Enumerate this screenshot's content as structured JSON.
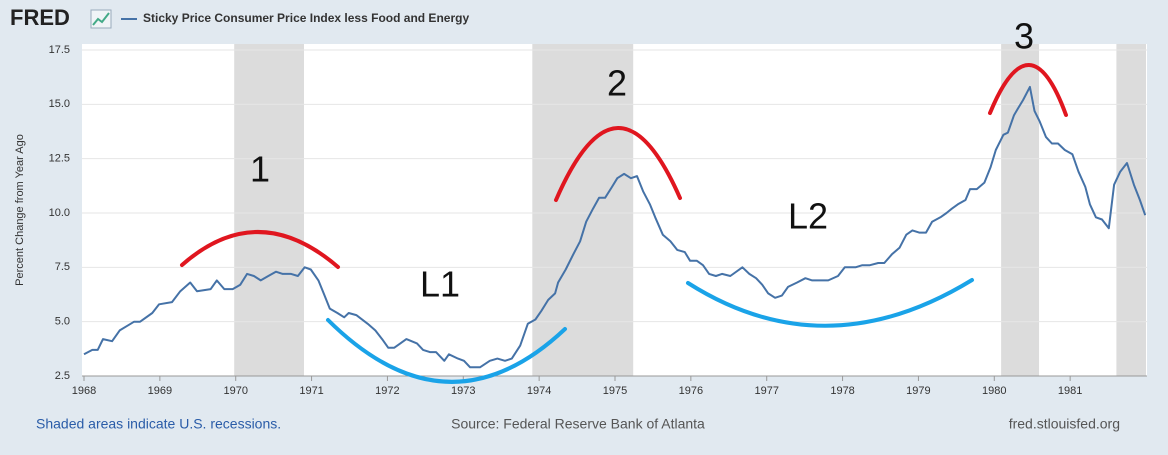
{
  "chart_data": {
    "type": "line",
    "logo": "FRED",
    "title": "Sticky Price Consumer Price Index less Food and Energy",
    "y_label": "Percent Change from Year Ago",
    "recession_note": "Shaded areas indicate U.S. recessions.",
    "source": "Source: Federal Reserve Bank of Atlanta",
    "site": "fred.stlouisfed.org",
    "annotations": [
      "1",
      "2",
      "3",
      "L1",
      "L2"
    ],
    "xlim": [
      1968,
      1982
    ],
    "xticks": [
      1968,
      1969,
      1970,
      1971,
      1972,
      1973,
      1974,
      1975,
      1976,
      1977,
      1978,
      1979,
      1980,
      1981
    ],
    "ylim": [
      2.5,
      17.5
    ],
    "yticks": [
      2.5,
      {
        "value": 5,
        "label": "5.0"
      },
      7.5,
      {
        "value": 10,
        "label": "10.0"
      },
      12.5,
      {
        "value": 15,
        "label": "15.0"
      },
      17.5
    ],
    "grid": true,
    "recessions": [
      [
        1969.98,
        1970.9
      ],
      [
        1973.91,
        1975.24
      ],
      [
        1980.09,
        1980.59
      ],
      [
        1981.61,
        1982
      ]
    ],
    "recession_color": "#dcdcdc",
    "series": [
      {
        "name": "Sticky Price Consumer Price Index less Food and Energy",
        "color": "#4572a7",
        "x": [
          1968.0,
          1968.11,
          1968.18,
          1968.25,
          1968.37,
          1968.47,
          1968.66,
          1968.74,
          1968.9,
          1968.99,
          1969.16,
          1969.27,
          1969.4,
          1969.49,
          1969.67,
          1969.75,
          1969.85,
          1969.96,
          1970.06,
          1970.15,
          1970.24,
          1970.33,
          1970.43,
          1970.53,
          1970.62,
          1970.73,
          1970.82,
          1970.91,
          1970.99,
          1971.09,
          1971.16,
          1971.24,
          1971.34,
          1971.43,
          1971.49,
          1971.59,
          1971.74,
          1971.84,
          1971.93,
          1972.01,
          1972.09,
          1972.17,
          1972.25,
          1972.39,
          1972.47,
          1972.56,
          1972.64,
          1972.75,
          1972.81,
          1972.93,
          1973.01,
          1973.09,
          1973.22,
          1973.35,
          1973.45,
          1973.55,
          1973.64,
          1973.75,
          1973.85,
          1973.95,
          1974.03,
          1974.12,
          1974.21,
          1974.25,
          1974.35,
          1974.45,
          1974.54,
          1974.62,
          1974.71,
          1974.79,
          1974.87,
          1974.96,
          1975.03,
          1975.12,
          1975.21,
          1975.29,
          1975.37,
          1975.46,
          1975.53,
          1975.63,
          1975.73,
          1975.82,
          1975.92,
          1975.99,
          1976.08,
          1976.16,
          1976.24,
          1976.33,
          1976.41,
          1976.52,
          1976.68,
          1976.77,
          1976.86,
          1976.94,
          1977.02,
          1977.11,
          1977.2,
          1977.28,
          1977.4,
          1977.51,
          1977.6,
          1977.7,
          1977.81,
          1977.94,
          1978.03,
          1978.17,
          1978.26,
          1978.36,
          1978.47,
          1978.55,
          1978.65,
          1978.75,
          1978.84,
          1978.92,
          1979.01,
          1979.1,
          1979.18,
          1979.29,
          1979.37,
          1979.44,
          1979.52,
          1979.62,
          1979.68,
          1979.77,
          1979.87,
          1979.95,
          1980.02,
          1980.12,
          1980.18,
          1980.26,
          1980.31,
          1980.38,
          1980.47,
          1980.53,
          1980.6,
          1980.68,
          1980.76,
          1980.84,
          1980.93,
          1981.03,
          1981.11,
          1981.2,
          1981.26,
          1981.34,
          1981.42,
          1981.51,
          1981.58,
          1981.66,
          1981.75,
          1981.84,
          1981.92,
          1981.99
        ],
        "values": [
          3.5,
          3.7,
          3.7,
          4.2,
          4.1,
          4.6,
          5.0,
          5.0,
          5.4,
          5.8,
          5.9,
          6.4,
          6.8,
          6.4,
          6.5,
          6.9,
          6.5,
          6.5,
          6.7,
          7.2,
          7.1,
          6.9,
          7.1,
          7.3,
          7.2,
          7.2,
          7.1,
          7.5,
          7.4,
          6.9,
          6.3,
          5.6,
          5.4,
          5.2,
          5.4,
          5.3,
          4.9,
          4.6,
          4.2,
          3.8,
          3.8,
          4.0,
          4.2,
          4.0,
          3.7,
          3.6,
          3.6,
          3.2,
          3.5,
          3.3,
          3.2,
          2.9,
          2.9,
          3.2,
          3.3,
          3.2,
          3.3,
          3.9,
          4.9,
          5.1,
          5.5,
          6.0,
          6.3,
          6.8,
          7.4,
          8.1,
          8.7,
          9.6,
          10.2,
          10.7,
          10.7,
          11.2,
          11.6,
          11.8,
          11.6,
          11.7,
          11.0,
          10.4,
          9.8,
          9.0,
          8.7,
          8.3,
          8.2,
          7.8,
          7.8,
          7.6,
          7.2,
          7.1,
          7.2,
          7.1,
          7.5,
          7.2,
          7.0,
          6.7,
          6.3,
          6.1,
          6.2,
          6.6,
          6.8,
          7.0,
          6.9,
          6.9,
          6.9,
          7.1,
          7.5,
          7.5,
          7.6,
          7.6,
          7.7,
          7.7,
          8.1,
          8.4,
          9.0,
          9.2,
          9.1,
          9.1,
          9.6,
          9.8,
          10.0,
          10.2,
          10.4,
          10.6,
          11.1,
          11.1,
          11.4,
          12.1,
          12.9,
          13.6,
          13.7,
          14.5,
          14.8,
          15.2,
          15.8,
          14.7,
          14.2,
          13.5,
          13.2,
          13.2,
          12.9,
          12.7,
          11.9,
          11.2,
          10.4,
          9.8,
          9.7,
          9.3,
          11.3,
          11.9,
          12.3,
          11.3,
          10.6,
          9.9
        ]
      }
    ]
  }
}
